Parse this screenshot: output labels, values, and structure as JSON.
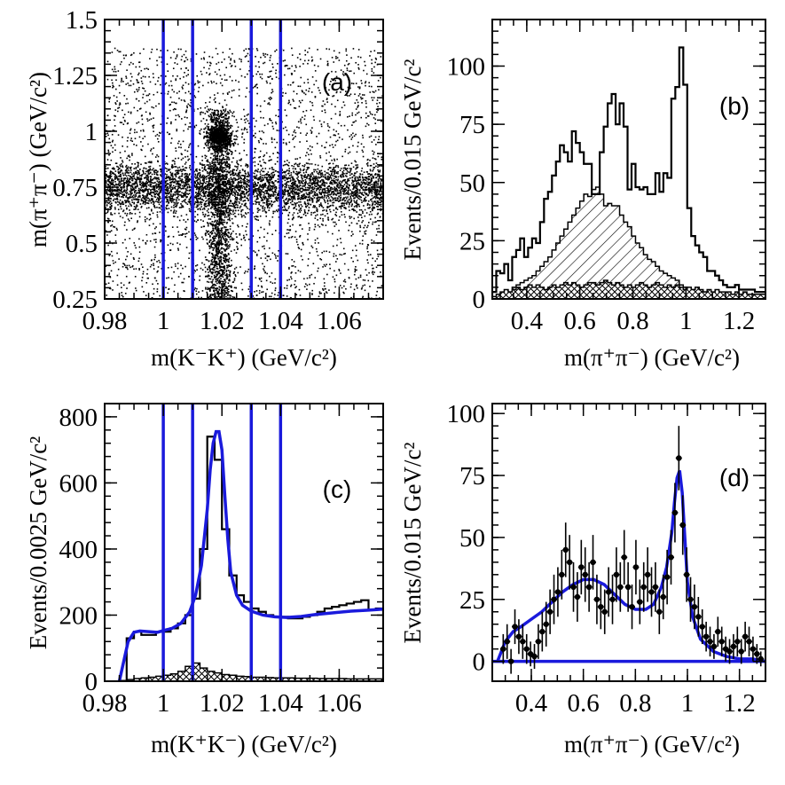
{
  "chart_data": [
    {
      "id": "a",
      "type": "scatter",
      "tag": "(a)",
      "xlabel": "m(K⁻K⁺) (GeV/c²)",
      "ylabel": "m(π⁺π⁻) (GeV/c²)",
      "xlim": [
        0.98,
        1.075
      ],
      "ylim": [
        0.25,
        1.5
      ],
      "xticks": [
        0.98,
        1.0,
        1.02,
        1.04,
        1.06
      ],
      "xtick_labels": [
        "0.98",
        "1",
        "1.02",
        "1.04",
        "1.06"
      ],
      "yticks": [
        0.25,
        0.5,
        0.75,
        1.0,
        1.25,
        1.5
      ],
      "ytick_labels": [
        "0.25",
        "0.5",
        "0.75",
        "1",
        "1.25",
        "1.5"
      ],
      "vertical_lines": [
        1.0,
        1.01,
        1.03,
        1.04
      ],
      "line_color": "#1a1adc",
      "density_features": {
        "rho_band_mass": 0.75,
        "phi_band_mass": 1.019,
        "f0_cluster": [
          1.019,
          0.98
        ]
      }
    },
    {
      "id": "b",
      "type": "bar",
      "tag": "(b)",
      "xlabel": "m(π⁺π⁻) (GeV/c²)",
      "ylabel": "Events/0.015 GeV/c²",
      "xlim": [
        0.27,
        1.3
      ],
      "ylim": [
        0,
        120
      ],
      "xticks": [
        0.4,
        0.6,
        0.8,
        1.0,
        1.2
      ],
      "xtick_labels": [
        "0.4",
        "0.6",
        "0.8",
        "1",
        "1.2"
      ],
      "yticks": [
        0,
        25,
        50,
        75,
        100
      ],
      "ytick_labels": [
        "0",
        "25",
        "50",
        "75",
        "100"
      ],
      "bin_width": 0.015,
      "series": [
        {
          "role": "signal-region histogram",
          "values": [
            3,
            12,
            11,
            15,
            8,
            18,
            21,
            26,
            18,
            22,
            26,
            24,
            33,
            43,
            46,
            53,
            59,
            66,
            63,
            59,
            72,
            67,
            63,
            58,
            58,
            45,
            45,
            63,
            74,
            84,
            88,
            75,
            84,
            74,
            47,
            58,
            48,
            47,
            48,
            45,
            45,
            54,
            46,
            54,
            52,
            86,
            91,
            108,
            92,
            39,
            27,
            23,
            20,
            18,
            12,
            12,
            10,
            8,
            6,
            5,
            5,
            6,
            4,
            4,
            4,
            4,
            3,
            3,
            3
          ]
        },
        {
          "role": "phi sideband (hatched)",
          "values": [
            0,
            0,
            1,
            2,
            3,
            5,
            6,
            7,
            8,
            9,
            10,
            12,
            14,
            16,
            18,
            21,
            24,
            27,
            30,
            33,
            36,
            39,
            42,
            45,
            44,
            47,
            48,
            45,
            40,
            41,
            40,
            40,
            36,
            33,
            31,
            27,
            24,
            22,
            19,
            17,
            16,
            14,
            12,
            11,
            10,
            9,
            8,
            6,
            5,
            4,
            4,
            3,
            3,
            3,
            2,
            2,
            2,
            1,
            1,
            1,
            1,
            0,
            0,
            0,
            0,
            0,
            0,
            0,
            0
          ]
        },
        {
          "role": "non-phi background (cross-hatched)",
          "values": [
            1,
            2,
            3,
            4,
            3,
            4,
            5,
            4,
            5,
            6,
            5,
            6,
            5,
            4,
            5,
            6,
            5,
            6,
            7,
            6,
            7,
            6,
            5,
            6,
            7,
            7,
            6,
            7,
            8,
            7,
            6,
            7,
            6,
            5,
            6,
            5,
            6,
            7,
            6,
            5,
            6,
            7,
            6,
            5,
            6,
            5,
            6,
            5,
            4,
            5,
            4,
            5,
            4,
            3,
            4,
            3,
            4,
            3,
            3,
            3,
            2,
            3,
            2,
            3,
            2,
            2,
            2,
            2,
            2
          ]
        }
      ]
    },
    {
      "id": "c",
      "type": "bar",
      "tag": "(c)",
      "xlabel": "m(K⁺K⁻) (GeV/c²)",
      "ylabel": "Events/0.0025 GeV/c²",
      "xlim": [
        0.98,
        1.075
      ],
      "ylim": [
        0,
        840
      ],
      "xticks": [
        0.98,
        1.0,
        1.02,
        1.04,
        1.06
      ],
      "xtick_labels": [
        "0.98",
        "1",
        "1.02",
        "1.04",
        "1.06"
      ],
      "yticks": [
        0,
        200,
        400,
        600,
        800
      ],
      "ytick_labels": [
        "0",
        "200",
        "400",
        "600",
        "800"
      ],
      "bin_width": 0.0025,
      "vertical_lines": [
        1.0,
        1.01,
        1.03,
        1.04
      ],
      "line_color": "#1a1adc",
      "series": [
        {
          "role": "data histogram",
          "x_start": 0.985,
          "values": [
            0,
            130,
            150,
            140,
            140,
            150,
            150,
            160,
            175,
            200,
            250,
            400,
            740,
            670,
            460,
            320,
            260,
            240,
            220,
            210,
            200,
            195,
            195,
            190,
            190,
            195,
            200,
            210,
            220,
            225,
            230,
            235,
            240,
            245,
            215,
            220
          ]
        },
        {
          "role": "background (hatched)",
          "x_start": 0.985,
          "values": [
            2,
            5,
            8,
            10,
            12,
            15,
            18,
            22,
            30,
            45,
            55,
            40,
            30,
            25,
            20,
            18,
            15,
            14,
            12,
            12,
            11,
            10,
            10,
            10,
            9,
            9,
            9,
            8,
            8,
            8,
            8,
            7,
            7,
            7,
            7,
            7
          ]
        },
        {
          "role": "fit",
          "x": [
            0.985,
            0.986,
            0.988,
            0.99,
            0.992,
            0.995,
            0.998,
            1.0,
            1.003,
            1.006,
            1.009,
            1.011,
            1.013,
            1.015,
            1.016,
            1.017,
            1.018,
            1.019,
            1.02,
            1.021,
            1.022,
            1.023,
            1.025,
            1.027,
            1.03,
            1.034,
            1.038,
            1.042,
            1.047,
            1.052,
            1.058,
            1.064,
            1.07,
            1.075
          ],
          "y": [
            0,
            40,
            120,
            148,
            152,
            150,
            148,
            153,
            160,
            175,
            210,
            260,
            350,
            520,
            640,
            720,
            755,
            755,
            700,
            560,
            430,
            330,
            260,
            230,
            212,
            200,
            195,
            193,
            196,
            202,
            207,
            212,
            215,
            218
          ]
        }
      ]
    },
    {
      "id": "d",
      "type": "scatter",
      "tag": "(d)",
      "xlabel": "m(π⁺π⁻) (GeV/c²)",
      "ylabel": "Events/0.015 GeV/c²",
      "xlim": [
        0.25,
        1.3
      ],
      "ylim": [
        -8,
        104
      ],
      "xticks": [
        0.4,
        0.6,
        0.8,
        1.0,
        1.2
      ],
      "xtick_labels": [
        "0.4",
        "0.6",
        "0.8",
        "1",
        "1.2"
      ],
      "yticks": [
        0,
        25,
        50,
        75,
        100
      ],
      "ytick_labels": [
        "0",
        "25",
        "50",
        "75",
        "100"
      ],
      "points": {
        "x": [
          0.292,
          0.307,
          0.322,
          0.337,
          0.352,
          0.367,
          0.382,
          0.397,
          0.412,
          0.427,
          0.442,
          0.457,
          0.472,
          0.487,
          0.502,
          0.517,
          0.532,
          0.547,
          0.562,
          0.577,
          0.592,
          0.607,
          0.622,
          0.637,
          0.652,
          0.667,
          0.682,
          0.697,
          0.712,
          0.727,
          0.742,
          0.757,
          0.772,
          0.787,
          0.802,
          0.817,
          0.832,
          0.847,
          0.862,
          0.877,
          0.892,
          0.907,
          0.922,
          0.937,
          0.952,
          0.967,
          0.982,
          0.997,
          1.012,
          1.027,
          1.042,
          1.057,
          1.072,
          1.087,
          1.102,
          1.117,
          1.132,
          1.147,
          1.162,
          1.177,
          1.192,
          1.207,
          1.222,
          1.237,
          1.252,
          1.267,
          1.282
        ],
        "y": [
          5,
          8,
          0,
          14,
          10,
          8,
          5,
          3,
          2,
          8,
          12,
          15,
          20,
          25,
          28,
          35,
          45,
          40,
          30,
          26,
          38,
          35,
          30,
          40,
          25,
          22,
          20,
          28,
          25,
          35,
          30,
          42,
          30,
          22,
          38,
          24,
          30,
          35,
          28,
          30,
          20,
          26,
          34,
          42,
          60,
          82,
          55,
          35,
          25,
          22,
          18,
          14,
          10,
          8,
          6,
          12,
          8,
          5,
          4,
          6,
          8,
          4,
          10,
          8,
          5,
          3,
          1
        ],
        "err": [
          6,
          7,
          5,
          7,
          7,
          7,
          6,
          5,
          5,
          7,
          8,
          9,
          9,
          10,
          10,
          10,
          11,
          11,
          10,
          10,
          11,
          11,
          10,
          11,
          10,
          9,
          9,
          10,
          10,
          11,
          10,
          11,
          10,
          9,
          11,
          9,
          10,
          11,
          10,
          10,
          9,
          9,
          11,
          11,
          12,
          13,
          12,
          11,
          9,
          9,
          8,
          7,
          6,
          6,
          5,
          6,
          6,
          5,
          5,
          5,
          6,
          5,
          6,
          6,
          5,
          4,
          3
        ]
      },
      "fit": {
        "x": [
          0.27,
          0.3,
          0.33,
          0.36,
          0.4,
          0.44,
          0.48,
          0.52,
          0.56,
          0.6,
          0.64,
          0.68,
          0.72,
          0.76,
          0.8,
          0.84,
          0.87,
          0.9,
          0.92,
          0.94,
          0.95,
          0.96,
          0.97,
          0.98,
          0.99,
          1.0,
          1.02,
          1.05,
          1.1,
          1.15,
          1.2,
          1.25,
          1.3
        ],
        "y": [
          0,
          8,
          12,
          14,
          17,
          20,
          24,
          28,
          31,
          33,
          33,
          31,
          27,
          23,
          21,
          21,
          23,
          30,
          38,
          52,
          64,
          74,
          77,
          68,
          50,
          32,
          18,
          9,
          4,
          2,
          1,
          1,
          0
        ]
      },
      "baseline": 0,
      "line_color": "#1a1adc"
    }
  ]
}
